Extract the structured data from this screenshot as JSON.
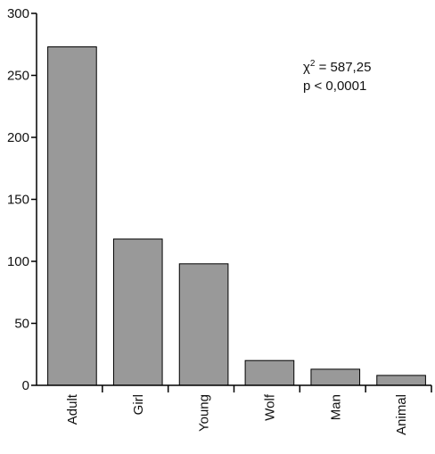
{
  "chart_data": {
    "type": "bar",
    "categories": [
      "Adult",
      "Girl",
      "Young",
      "Wolf",
      "Man",
      "Animal"
    ],
    "values": [
      273,
      118,
      98,
      20,
      13,
      8
    ],
    "title": "",
    "xlabel": "",
    "ylabel": "",
    "ylim": [
      0,
      300
    ],
    "yticks": [
      0,
      50,
      100,
      150,
      200,
      250,
      300
    ],
    "grid": false,
    "bar_color": "#999999",
    "annotation": {
      "chi_symbol": "χ",
      "chi_superscript": "2",
      "chi_value": " = 587,25",
      "p_line": "p < 0,0001"
    }
  }
}
